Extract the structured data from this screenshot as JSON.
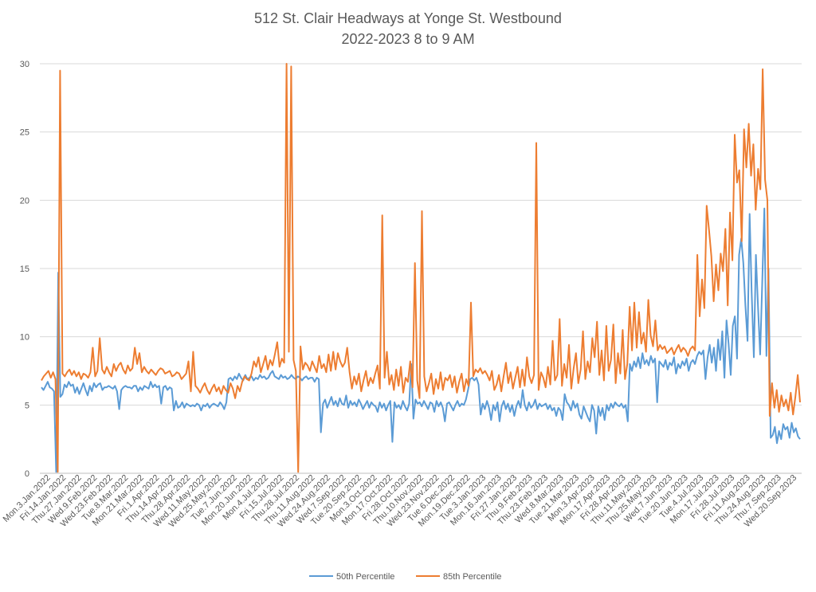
{
  "chart_data": {
    "type": "line",
    "title": "512 St. Clair Headways at Yonge St. Westbound",
    "subtitle": "2022-2023 8 to 9 AM",
    "xlabel": "",
    "ylabel": "",
    "ylim": [
      0,
      30
    ],
    "yticks": [
      0,
      5,
      10,
      15,
      20,
      25,
      30
    ],
    "grid": true,
    "legend": "bottom",
    "x_tick_labels": [
      "Mon.3.Jan.2022",
      "Fri.14.Jan.2022",
      "Thu.27.Jan.2022",
      "Wed.9.Feb.2022",
      "Wed.23.Feb.2022",
      "Tue.8.Mar.2022",
      "Mon.21.Mar.2022",
      "Fri.1.Apr.2022",
      "Thu.14.Apr.2022",
      "Thu.28.Apr.2022",
      "Wed.11.May.2022",
      "Wed.25.May.2022",
      "Tue.7.Jun.2022",
      "Mon.20.Jun.2022",
      "Mon.4.Jul.2022",
      "Fri.15.Jul.2022",
      "Thu.28.Jul.2022",
      "Thu.11.Aug.2022",
      "Wed.24.Aug.2022",
      "Wed.7.Sep.2022",
      "Tue.20.Sep.2022",
      "Mon.3.Oct.2022",
      "Mon.17.Oct.2022",
      "Fri.28.Oct.2022",
      "Thu.10.Nov.2022",
      "Wed.23.Nov.2022",
      "Tue.6.Dec.2022",
      "Mon.19.Dec.2022",
      "Tue.3.Jan.2023",
      "Mon.16.Jan.2023",
      "Fri.27.Jan.2023",
      "Thu.9.Feb.2023",
      "Thu.23.Feb.2023",
      "Wed.8.Mar.2023",
      "Tue.21.Mar.2023",
      "Mon.3.Apr.2023",
      "Mon.17.Apr.2023",
      "Fri.28.Apr.2023",
      "Thu.11.May.2023",
      "Thu.25.May.2023",
      "Wed.7.Jun.2023",
      "Tue.20.Jun.2023",
      "Tue.4.Jul.2023",
      "Mon.17.Jul.2023",
      "Fri.28.Jul.2023",
      "Fri.11.Aug.2023",
      "Thu.24.Aug.2023",
      "Thu.7.Sep.2023",
      "Wed.20.Sep.2023"
    ],
    "series": [
      {
        "name": "50th Percentile",
        "color": "#5B9BD5",
        "values": [
          6.3,
          6.1,
          6.4,
          6.7,
          6.3,
          6.2,
          6.0,
          0.1,
          14.7,
          5.6,
          5.8,
          6.5,
          6.3,
          6.7,
          6.4,
          6.5,
          5.9,
          6.3,
          5.8,
          6.2,
          6.6,
          6.1,
          5.7,
          6.4,
          6.0,
          6.6,
          6.3,
          6.5,
          6.6,
          6.1,
          6.3,
          6.3,
          6.4,
          6.3,
          6.2,
          6.4,
          6.0,
          4.7,
          6.1,
          6.3,
          6.4,
          6.3,
          6.3,
          6.2,
          6.4,
          6.4,
          6.0,
          6.3,
          6.1,
          6.4,
          6.3,
          6.2,
          6.7,
          6.3,
          6.5,
          6.3,
          6.4,
          5.1,
          6.3,
          6.4,
          6.1,
          6.3,
          6.2,
          4.6,
          5.3,
          4.8,
          4.9,
          5.2,
          4.8,
          5.1,
          5.0,
          4.9,
          5.0,
          4.9,
          5.1,
          5.0,
          4.6,
          5.0,
          4.9,
          5.1,
          4.8,
          5.0,
          5.1,
          5.0,
          4.9,
          5.2,
          5.0,
          4.7,
          5.2,
          6.9,
          7.0,
          6.8,
          7.1,
          6.9,
          7.3,
          7.0,
          6.8,
          7.2,
          6.9,
          7.0,
          7.1,
          6.8,
          7.0,
          6.9,
          7.2,
          7.0,
          7.1,
          6.9,
          7.0,
          7.3,
          7.5,
          7.1,
          7.0,
          6.9,
          7.2,
          7.0,
          7.1,
          6.9,
          7.0,
          7.2,
          7.0,
          6.9,
          7.1,
          7.0,
          6.8,
          7.0,
          7.1,
          6.9,
          7.0,
          7.0,
          6.7,
          7.0,
          6.9,
          3.0,
          5.1,
          5.4,
          4.8,
          5.2,
          5.6,
          5.0,
          5.3,
          4.9,
          5.5,
          5.1,
          5.0,
          5.7,
          4.8,
          5.3,
          5.0,
          5.2,
          4.9,
          5.4,
          5.1,
          4.7,
          5.0,
          5.3,
          4.8,
          5.2,
          5.0,
          4.9,
          4.5,
          5.2,
          4.8,
          5.1,
          4.6,
          5.0,
          5.3,
          2.3,
          5.2,
          4.8,
          5.0,
          4.7,
          5.3,
          4.9,
          4.6,
          5.1,
          8.0,
          4.0,
          5.4,
          5.1,
          5.2,
          4.9,
          5.3,
          5.0,
          4.7,
          5.2,
          5.1,
          4.5,
          5.3,
          4.9,
          5.2,
          4.8,
          3.8,
          5.1,
          5.2,
          4.9,
          4.6,
          5.0,
          5.3,
          4.9,
          5.1,
          5.0,
          5.4,
          6.1,
          6.9,
          7.0,
          6.8,
          7.0,
          6.5,
          4.3,
          5.1,
          4.7,
          5.3,
          4.8,
          3.9,
          5.0,
          4.6,
          5.2,
          3.8,
          4.9,
          5.3,
          4.7,
          5.1,
          4.5,
          5.0,
          4.2,
          4.9,
          5.3,
          4.8,
          6.1,
          5.0,
          4.6,
          5.2,
          4.8,
          5.0,
          5.4,
          4.7,
          5.1,
          4.9,
          5.0,
          5.1,
          4.7,
          5.0,
          4.6,
          4.8,
          4.2,
          4.8,
          4.6,
          3.9,
          5.8,
          5.2,
          5.0,
          4.6,
          5.3,
          4.8,
          5.1,
          4.3,
          4.0,
          4.9,
          4.5,
          4.1,
          3.8,
          5.0,
          4.6,
          2.9,
          4.9,
          4.2,
          4.8,
          3.9,
          5.0,
          4.6,
          5.1,
          4.8,
          5.2,
          5.0,
          4.9,
          5.1,
          4.8,
          5.0,
          3.8,
          8.0,
          7.5,
          8.2,
          7.8,
          8.5,
          7.7,
          8.8,
          8.0,
          8.3,
          7.9,
          8.6,
          8.1,
          8.4,
          5.2,
          8.2,
          8.0,
          7.8,
          8.3,
          7.6,
          8.1,
          7.9,
          8.5,
          7.3,
          8.0,
          7.7,
          8.2,
          7.9,
          8.4,
          7.5,
          8.1,
          8.3,
          8.0,
          8.6,
          8.9,
          8.7,
          9.0,
          6.9,
          8.5,
          9.4,
          8.1,
          9.2,
          7.5,
          9.8,
          8.3,
          10.4,
          7.0,
          11.2,
          9.5,
          7.2,
          10.8,
          11.5,
          8.4,
          16.0,
          17.2,
          15.4,
          12.3,
          9.7,
          19.0,
          13.2,
          8.5,
          16.0,
          12.1,
          8.7,
          13.9,
          19.4,
          8.6,
          15.0,
          2.6,
          2.8,
          3.4,
          2.2,
          3.1,
          2.5,
          3.6,
          3.2,
          3.4,
          2.6,
          3.7,
          3.0,
          3.3,
          2.7,
          2.5
        ]
      },
      {
        "name": "85th Percentile",
        "color": "#ED7D31",
        "values": [
          6.8,
          7.1,
          7.3,
          7.5,
          7.0,
          7.4,
          6.9,
          0.1,
          29.5,
          7.3,
          7.1,
          7.4,
          7.6,
          7.2,
          7.5,
          7.1,
          7.4,
          6.9,
          7.3,
          7.2,
          7.0,
          7.4,
          9.2,
          7.1,
          7.5,
          9.9,
          7.6,
          7.3,
          7.8,
          7.4,
          7.1,
          8.0,
          7.5,
          7.9,
          8.1,
          7.6,
          7.3,
          7.9,
          7.5,
          7.7,
          9.2,
          8.0,
          8.8,
          7.4,
          7.8,
          7.5,
          7.3,
          7.6,
          7.4,
          7.2,
          7.5,
          7.7,
          7.6,
          7.3,
          7.4,
          7.5,
          7.1,
          7.2,
          7.4,
          7.3,
          6.9,
          7.1,
          7.3,
          8.2,
          6.0,
          8.9,
          6.4,
          6.2,
          5.9,
          6.3,
          6.6,
          6.1,
          5.8,
          6.2,
          6.5,
          6.0,
          6.3,
          5.8,
          6.4,
          6.1,
          5.9,
          6.6,
          6.2,
          5.5,
          6.4,
          6.0,
          6.7,
          7.1,
          6.9,
          6.8,
          7.3,
          8.2,
          7.8,
          8.5,
          7.4,
          8.0,
          8.6,
          7.6,
          8.3,
          7.9,
          8.7,
          9.6,
          7.8,
          8.4,
          8.1,
          30.0,
          8.9,
          29.8,
          8.3,
          7.5,
          0.1,
          9.3,
          7.6,
          8.1,
          7.9,
          7.5,
          8.2,
          7.8,
          7.4,
          8.6,
          7.7,
          8.0,
          7.4,
          8.7,
          7.5,
          8.9,
          7.6,
          8.8,
          8.2,
          7.8,
          8.1,
          9.2,
          7.4,
          6.2,
          7.1,
          6.5,
          7.3,
          6.0,
          6.8,
          7.5,
          6.4,
          7.0,
          6.6,
          7.3,
          7.9,
          6.2,
          18.9,
          7.0,
          8.9,
          6.5,
          7.2,
          6.1,
          7.6,
          6.4,
          7.8,
          5.9,
          7.0,
          6.7,
          8.2,
          6.3,
          15.4,
          6.8,
          5.5,
          19.2,
          7.1,
          6.0,
          6.6,
          7.3,
          5.8,
          6.9,
          6.2,
          7.4,
          6.1,
          7.0,
          6.8,
          7.2,
          6.3,
          7.1,
          5.9,
          6.7,
          7.3,
          6.0,
          6.9,
          6.4,
          12.5,
          7.1,
          7.6,
          7.4,
          7.7,
          7.3,
          7.5,
          7.2,
          6.8,
          7.5,
          6.1,
          6.5,
          7.2,
          6.0,
          7.1,
          8.1,
          6.6,
          7.4,
          6.2,
          7.0,
          7.8,
          6.3,
          7.6,
          6.4,
          8.5,
          7.1,
          6.6,
          7.2,
          24.2,
          6.1,
          7.4,
          7.0,
          6.3,
          7.8,
          6.5,
          9.7,
          6.8,
          7.2,
          11.3,
          6.4,
          8.0,
          7.0,
          9.4,
          6.2,
          7.7,
          8.8,
          6.6,
          7.6,
          10.4,
          6.9,
          8.2,
          7.4,
          9.9,
          8.5,
          11.1,
          7.2,
          9.0,
          6.8,
          10.8,
          7.5,
          8.3,
          10.9,
          6.6,
          8.8,
          7.3,
          10.5,
          6.9,
          8.0,
          12.2,
          9.0,
          12.5,
          9.2,
          11.8,
          9.5,
          10.3,
          8.9,
          12.7,
          10.1,
          9.3,
          11.2,
          9.0,
          9.4,
          9.1,
          9.3,
          8.8,
          9.0,
          9.2,
          8.7,
          9.1,
          9.4,
          8.9,
          9.2,
          9.0,
          8.6,
          9.1,
          9.3,
          9.0,
          16.0,
          11.5,
          14.2,
          12.1,
          19.6,
          17.8,
          15.9,
          12.6,
          15.3,
          13.4,
          16.1,
          14.8,
          17.9,
          12.3,
          19.1,
          15.6,
          24.8,
          21.3,
          22.2,
          17.0,
          25.2,
          22.4,
          25.6,
          21.8,
          24.1,
          19.3,
          22.3,
          20.8,
          29.6,
          21.5,
          20.0,
          4.2,
          6.6,
          4.8,
          6.1,
          4.5,
          5.7,
          4.9,
          5.4,
          4.6,
          5.9,
          4.3,
          5.6,
          7.2,
          5.2
        ]
      }
    ]
  }
}
